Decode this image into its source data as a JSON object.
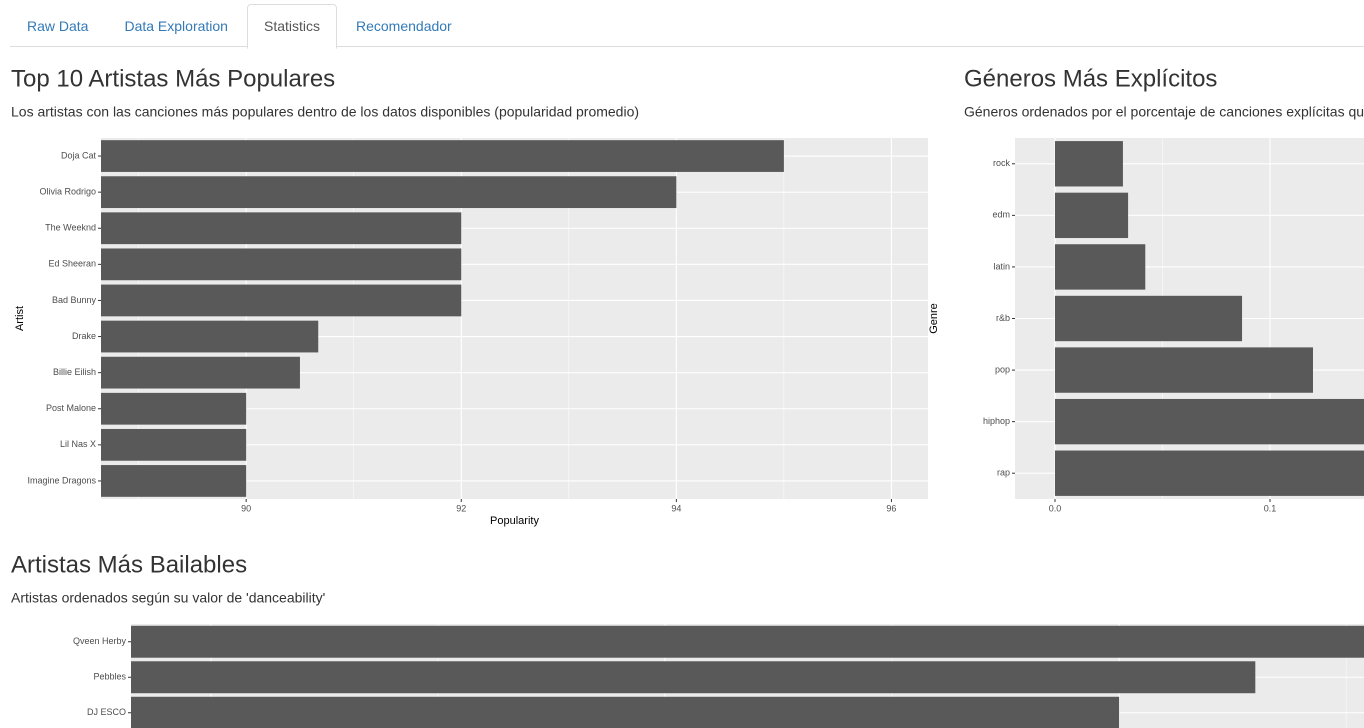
{
  "tabs": [
    {
      "label": "Raw Data"
    },
    {
      "label": "Data Exploration"
    },
    {
      "label": "Statistics",
      "active": true
    },
    {
      "label": "Recomendador"
    }
  ],
  "chart_data": [
    {
      "type": "hbar",
      "title": "Top 10 Artistas Más Populares",
      "subtitle": "Los artistas con las canciones más populares dentro de los datos disponibles (popularidad promedio)",
      "categories": [
        "Doja Cat",
        "Olivia Rodrigo",
        "The Weeknd",
        "Ed Sheeran",
        "Bad Bunny",
        "Drake",
        "Billie Eilish",
        "Post Malone",
        "Lil Nas X",
        "Imagine Dragons"
      ],
      "values": [
        95,
        94,
        92,
        92,
        92,
        90.67,
        90.5,
        90,
        90,
        90
      ],
      "xlim": [
        88.65,
        96.34
      ],
      "xticks": [
        90,
        92,
        94,
        96
      ],
      "xlabel": "Popularity",
      "ylabel": "Artist",
      "color": "#595959",
      "grid": true
    },
    {
      "type": "hbar",
      "title": "Géneros Más Explícitos",
      "subtitle": "Géneros ordenados por el porcentaje de canciones explícitas que contienen",
      "categories": [
        "rock",
        "edm",
        "latin",
        "r&b",
        "pop",
        "hiphop",
        "rap"
      ],
      "values": [
        0.0316,
        0.034,
        0.042,
        0.087,
        0.12,
        0.2,
        0.25
      ],
      "xlim": [
        -0.0186,
        0.3
      ],
      "xticks": [
        {
          "value": 0,
          "label": "0.0"
        },
        0.1
      ],
      "ylabel": "Genre",
      "color": "#595959",
      "grid": true
    },
    {
      "type": "hbar",
      "title": "Artistas Más Bailables",
      "subtitle": "Artistas ordenados según su valor de 'danceability'",
      "categories": [
        "Qveen Herby",
        "Pebbles",
        "DJ ESCO"
      ],
      "values": [
        0.974,
        0.9575,
        0.95
      ],
      "xlim": [
        0.8956,
        0.98
      ],
      "xticks": [
        0.9,
        0.925,
        0.95,
        0.975
      ],
      "color": "#595959",
      "grid": true
    }
  ]
}
